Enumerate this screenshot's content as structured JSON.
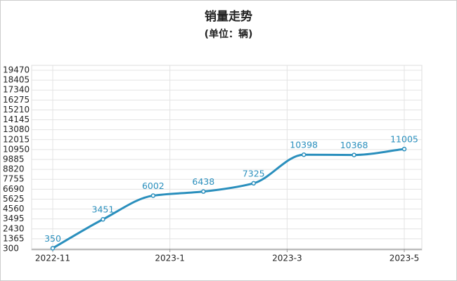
{
  "chart_data": {
    "type": "line",
    "title": "销量走势",
    "subtitle": "(单位：辆)",
    "x": [
      0,
      1,
      2,
      3,
      4,
      5,
      6,
      7
    ],
    "values": [
      350,
      3451,
      6002,
      6438,
      7325,
      10398,
      10368,
      11005
    ],
    "color": "#2a8fbd",
    "xlim": [
      0,
      7
    ],
    "xticks": [
      {
        "value": 0,
        "label": "2022-11"
      },
      {
        "value": 2.333,
        "label": "2023-1"
      },
      {
        "value": 4.667,
        "label": "2023-3"
      },
      {
        "value": 7,
        "label": "2023-5"
      }
    ],
    "ylim": [
      300,
      19470
    ],
    "yticks": [
      300,
      1365,
      2430,
      3495,
      4560,
      5625,
      6690,
      7755,
      8820,
      9885,
      10950,
      12015,
      13080,
      14145,
      15210,
      16275,
      17340,
      18405,
      19470
    ],
    "grid": true
  }
}
